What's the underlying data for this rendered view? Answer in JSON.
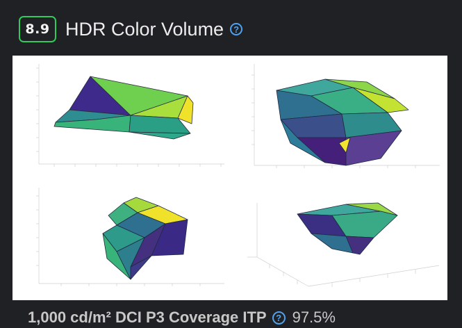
{
  "header": {
    "score": "8.9",
    "title": "HDR Color Volume",
    "help_icon": "question-circle-icon"
  },
  "footer": {
    "label": "1,000 cd/m² DCI P3 Coverage ITP",
    "help_icon": "question-circle-icon",
    "value": "97.5%"
  },
  "colors": {
    "score_border": "#2ecc5a",
    "help_icon": "#4ea3f0",
    "background": "#202124"
  }
}
